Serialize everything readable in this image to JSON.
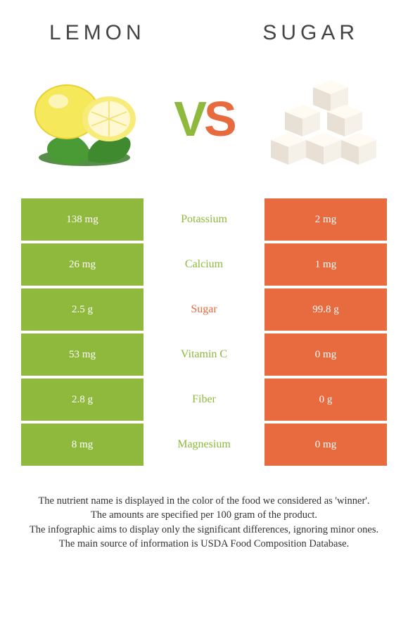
{
  "header": {
    "left_title": "Lemon",
    "right_title": "Sugar"
  },
  "vs": {
    "v": "V",
    "s": "S"
  },
  "colors": {
    "lemon": "#8fb93c",
    "sugar": "#e86a3f",
    "background": "#ffffff"
  },
  "table": {
    "rows": [
      {
        "left": "138 mg",
        "label": "Potassium",
        "right": "2 mg",
        "winner": "lemon"
      },
      {
        "left": "26 mg",
        "label": "Calcium",
        "right": "1 mg",
        "winner": "lemon"
      },
      {
        "left": "2.5 g",
        "label": "Sugar",
        "right": "99.8 g",
        "winner": "sugar"
      },
      {
        "left": "53 mg",
        "label": "Vitamin C",
        "right": "0 mg",
        "winner": "lemon"
      },
      {
        "left": "2.8 g",
        "label": "Fiber",
        "right": "0 g",
        "winner": "lemon"
      },
      {
        "left": "8 mg",
        "label": "Magnesium",
        "right": "0 mg",
        "winner": "lemon"
      }
    ]
  },
  "footer": {
    "line1": "The nutrient name is displayed in the color of the food we considered as 'winner'.",
    "line2": "The amounts are specified per 100 gram of the product.",
    "line3": "The infographic aims to display only the significant differences, ignoring minor ones.",
    "line4": "The main source of information is USDA Food Composition Database."
  }
}
